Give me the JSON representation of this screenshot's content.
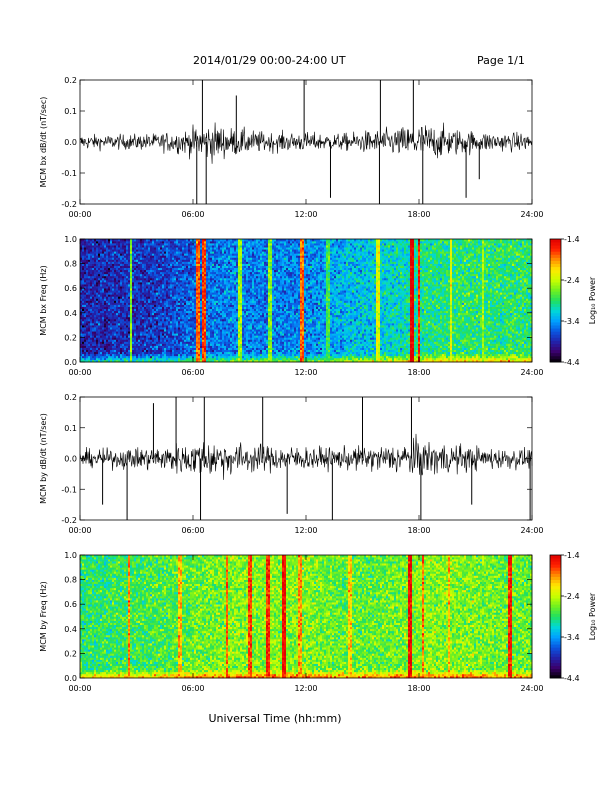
{
  "header": {
    "title": "2014/01/29  00:00-24:00 UT",
    "page": "Page 1/1"
  },
  "xlabel": "Universal Time (hh:mm)",
  "colorscale": [
    "#000000",
    "#3b006b",
    "#2222aa",
    "#0a55e0",
    "#00a0ff",
    "#00d8d8",
    "#20e060",
    "#70f020",
    "#c8ff00",
    "#ffea00",
    "#ff9000",
    "#ff2000",
    "#e00000"
  ],
  "chart_data": [
    {
      "type": "line",
      "ylabel": "MCM bx dB/dt (nT/sec)",
      "x_ticks": [
        "00:00",
        "06:00",
        "12:00",
        "18:00",
        "24:00"
      ],
      "x_range_hours": [
        0,
        24
      ],
      "ylim": [
        -0.2,
        0.2
      ],
      "y_ticks": [
        "-0.2",
        "-0.1",
        "0.0",
        "0.1",
        "0.2"
      ],
      "y_tick_values": [
        -0.2,
        -0.1,
        0.0,
        0.1,
        0.2
      ],
      "noise_profile": {
        "hours": [
          0,
          2,
          4,
          5.5,
          7,
          8,
          9,
          10,
          12,
          13,
          14,
          15,
          16,
          17,
          18,
          19,
          20,
          21,
          22,
          24
        ],
        "amplitude": [
          0.03,
          0.03,
          0.035,
          0.05,
          0.08,
          0.06,
          0.05,
          0.04,
          0.04,
          0.035,
          0.035,
          0.045,
          0.05,
          0.06,
          0.08,
          0.07,
          0.055,
          0.045,
          0.04,
          0.035
        ]
      },
      "spikes": [
        {
          "t": 6.2,
          "v": -0.2
        },
        {
          "t": 6.5,
          "v": 0.2
        },
        {
          "t": 6.7,
          "v": -0.2
        },
        {
          "t": 8.3,
          "v": 0.15
        },
        {
          "t": 11.9,
          "v": 0.2
        },
        {
          "t": 13.3,
          "v": -0.18
        },
        {
          "t": 15.9,
          "v": -0.2
        },
        {
          "t": 15.95,
          "v": 0.2
        },
        {
          "t": 17.7,
          "v": 0.2
        },
        {
          "t": 18.2,
          "v": -0.2
        },
        {
          "t": 20.5,
          "v": -0.18
        },
        {
          "t": 21.2,
          "v": -0.12
        }
      ]
    },
    {
      "type": "heatmap",
      "ylabel": "MCM bx Freq (Hz)",
      "x_ticks": [
        "00:00",
        "06:00",
        "12:00",
        "18:00",
        "24:00"
      ],
      "x_range_hours": [
        0,
        24
      ],
      "ylim": [
        0,
        1.0
      ],
      "y_ticks": [
        "0.0",
        "0.2",
        "0.4",
        "0.6",
        "0.8",
        "1.0"
      ],
      "y_tick_values": [
        0.0,
        0.2,
        0.4,
        0.6,
        0.8,
        1.0
      ],
      "colorbar_label": "Log₁₀ Power",
      "colorbar_ticks": [
        "-1.4",
        "-2.4",
        "-3.4",
        "-4.4"
      ],
      "colorbar_tick_values": [
        -1.4,
        -2.4,
        -3.4,
        -4.4
      ],
      "zlim": [
        -4.4,
        -1.4
      ],
      "background_profile": {
        "hours": [
          0,
          4,
          6,
          8,
          10,
          12,
          14,
          16,
          17,
          18,
          20,
          24
        ],
        "level": [
          -3.9,
          -3.8,
          -3.6,
          -3.5,
          -3.5,
          -3.5,
          -3.3,
          -3.2,
          -3.1,
          -3.0,
          -2.9,
          -2.9
        ]
      },
      "bright_lines": [
        {
          "t": 2.7,
          "level": -2.6
        },
        {
          "t": 6.3,
          "level": -1.8
        },
        {
          "t": 6.6,
          "level": -1.7
        },
        {
          "t": 8.5,
          "level": -2.5
        },
        {
          "t": 10.1,
          "level": -2.6
        },
        {
          "t": 11.8,
          "level": -1.8
        },
        {
          "t": 13.2,
          "level": -2.8
        },
        {
          "t": 15.8,
          "level": -2.3
        },
        {
          "t": 17.6,
          "level": -1.4
        },
        {
          "t": 18.0,
          "level": -1.6
        },
        {
          "t": 19.7,
          "level": -2.3
        },
        {
          "t": 21.4,
          "level": -2.5
        }
      ]
    },
    {
      "type": "line",
      "ylabel": "MCM by dB/dt (nT/sec)",
      "x_ticks": [
        "00:00",
        "06:00",
        "12:00",
        "18:00",
        "24:00"
      ],
      "x_range_hours": [
        0,
        24
      ],
      "ylim": [
        -0.2,
        0.2
      ],
      "y_ticks": [
        "-0.2",
        "-0.1",
        "0.0",
        "0.1",
        "0.2"
      ],
      "y_tick_values": [
        -0.2,
        -0.1,
        0.0,
        0.1,
        0.2
      ],
      "noise_profile": {
        "hours": [
          0,
          2,
          4,
          5.5,
          7,
          8,
          9,
          10,
          12,
          13,
          14,
          15,
          16,
          17,
          18,
          19,
          20,
          21,
          22,
          24
        ],
        "amplitude": [
          0.035,
          0.04,
          0.05,
          0.065,
          0.08,
          0.07,
          0.06,
          0.055,
          0.05,
          0.045,
          0.045,
          0.05,
          0.055,
          0.065,
          0.08,
          0.07,
          0.06,
          0.05,
          0.045,
          0.04
        ]
      },
      "spikes": [
        {
          "t": 1.2,
          "v": -0.15
        },
        {
          "t": 2.5,
          "v": -0.2
        },
        {
          "t": 3.9,
          "v": 0.18
        },
        {
          "t": 5.1,
          "v": 0.2
        },
        {
          "t": 6.4,
          "v": -0.2
        },
        {
          "t": 6.6,
          "v": 0.2
        },
        {
          "t": 9.7,
          "v": 0.2
        },
        {
          "t": 11.0,
          "v": -0.18
        },
        {
          "t": 13.4,
          "v": -0.2
        },
        {
          "t": 15.0,
          "v": 0.2
        },
        {
          "t": 17.6,
          "v": 0.2
        },
        {
          "t": 18.1,
          "v": -0.2
        },
        {
          "t": 20.8,
          "v": -0.15
        },
        {
          "t": 23.9,
          "v": -0.2
        }
      ]
    },
    {
      "type": "heatmap",
      "ylabel": "MCM by Freq (Hz)",
      "x_ticks": [
        "00:00",
        "06:00",
        "12:00",
        "18:00",
        "24:00"
      ],
      "x_range_hours": [
        0,
        24
      ],
      "ylim": [
        0,
        1.0
      ],
      "y_ticks": [
        "0.0",
        "0.2",
        "0.4",
        "0.6",
        "0.8",
        "1.0"
      ],
      "y_tick_values": [
        0.0,
        0.2,
        0.4,
        0.6,
        0.8,
        1.0
      ],
      "colorbar_label": "Log₁₀ Power",
      "colorbar_ticks": [
        "-1.4",
        "-2.4",
        "-3.4",
        "-4.4"
      ],
      "colorbar_tick_values": [
        -1.4,
        -2.4,
        -3.4,
        -4.4
      ],
      "zlim": [
        -4.4,
        -1.4
      ],
      "background_profile": {
        "hours": [
          0,
          4,
          6,
          8,
          10,
          12,
          14,
          16,
          18,
          20,
          24
        ],
        "level": [
          -2.9,
          -2.8,
          -2.7,
          -2.6,
          -2.6,
          -2.6,
          -2.7,
          -2.7,
          -2.6,
          -2.6,
          -2.7
        ]
      },
      "bright_lines": [
        {
          "t": 2.6,
          "level": -1.9
        },
        {
          "t": 5.3,
          "level": -2.0
        },
        {
          "t": 7.8,
          "level": -1.8
        },
        {
          "t": 9.0,
          "level": -1.7
        },
        {
          "t": 10.0,
          "level": -1.6
        },
        {
          "t": 10.8,
          "level": -1.5
        },
        {
          "t": 11.7,
          "level": -1.9
        },
        {
          "t": 14.3,
          "level": -2.1
        },
        {
          "t": 17.5,
          "level": -1.5
        },
        {
          "t": 18.2,
          "level": -1.8
        },
        {
          "t": 19.6,
          "level": -2.0
        },
        {
          "t": 22.8,
          "level": -1.6
        }
      ]
    }
  ]
}
